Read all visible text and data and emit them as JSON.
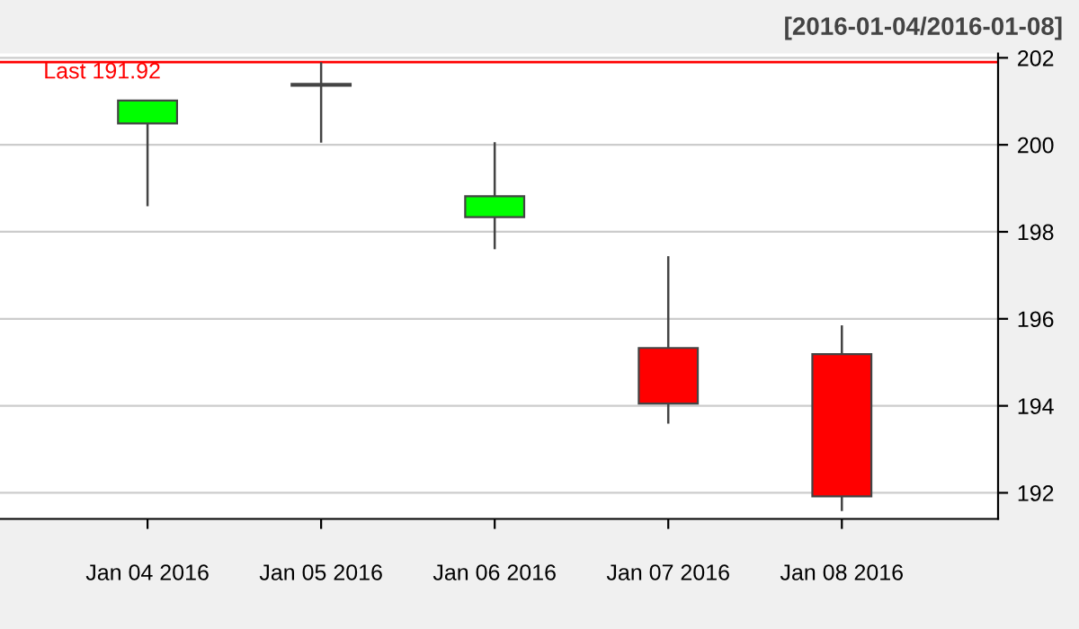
{
  "chart_data": {
    "type": "candlestick",
    "subtitle": "[2016-01-04/2016-01-08]",
    "categories": [
      "Jan 04 2016",
      "Jan 05 2016",
      "Jan 06 2016",
      "Jan 07 2016",
      "Jan 08 2016"
    ],
    "ohlc": [
      [
        200.49,
        201.03,
        198.59,
        201.02
      ],
      [
        201.4,
        201.9,
        200.05,
        201.36
      ],
      [
        198.34,
        200.06,
        197.6,
        198.82
      ],
      [
        195.33,
        197.44,
        193.59,
        194.05
      ],
      [
        195.19,
        195.85,
        191.58,
        191.92
      ]
    ],
    "colors": [
      "#00ff00",
      "#ff0000",
      "#00ff00",
      "#ff0000",
      "#ff0000"
    ],
    "ylim": [
      191.4,
      202.1
    ],
    "yticks": [
      192,
      194,
      196,
      198,
      200,
      202
    ],
    "grid": "y",
    "ref_lines": [
      {
        "axis": "y",
        "value": 201.9,
        "label": "Last 191.92",
        "color": "#ff0000"
      }
    ]
  }
}
